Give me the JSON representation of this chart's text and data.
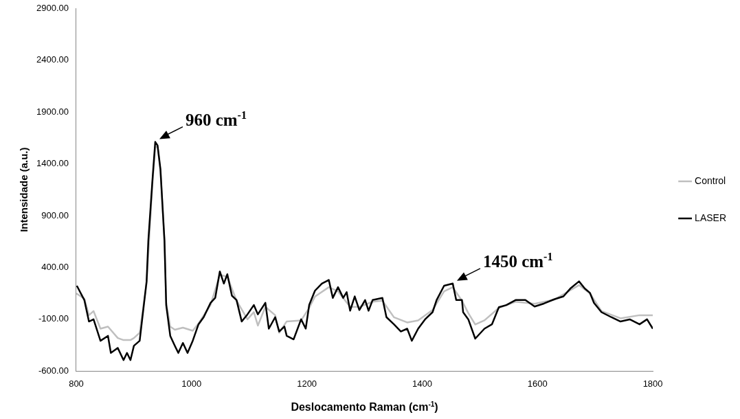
{
  "chart_data": {
    "type": "line",
    "xlabel": "Deslocamento Raman (cm$^{-1}$)",
    "ylabel": "Intensidade (a.u.)",
    "xlim": [
      800,
      1800
    ],
    "xticks": [
      800,
      1000,
      1200,
      1400,
      1600,
      1800
    ],
    "ylim": [
      -600,
      2900
    ],
    "yticks": [
      {
        "value": -600,
        "label": "-600.00"
      },
      {
        "value": -100,
        "label": "-100.00"
      },
      {
        "value": 400,
        "label": "400.00"
      },
      {
        "value": 900,
        "label": "900.00"
      },
      {
        "value": 1400,
        "label": "1400.00"
      },
      {
        "value": 1900,
        "label": "1900.00"
      },
      {
        "value": 2400,
        "label": "2400.00"
      },
      {
        "value": 2900,
        "label": "2900.00"
      }
    ],
    "grid": false,
    "legend": "right",
    "marker": "none",
    "line_style": "solid",
    "annotations": [
      {
        "text": "960 cm$^{-1}$",
        "x": 937,
        "y": 1611
      },
      {
        "text": "1450 cm$^{-1}$",
        "x": 1453,
        "y": 245
      }
    ],
    "series": [
      {
        "name": "Control",
        "color": "#bfbfbf",
        "x": [
          800,
          814,
          822,
          830,
          842,
          855,
          872,
          882,
          894,
          900,
          910,
          922,
          932,
          937,
          941,
          946,
          953,
          956,
          963,
          971,
          985,
          1002,
          1012,
          1033,
          1049,
          1062,
          1078,
          1097,
          1108,
          1115,
          1128,
          1145,
          1152,
          1165,
          1190,
          1204,
          1214,
          1238,
          1254,
          1275,
          1291,
          1314,
          1331,
          1351,
          1374,
          1393,
          1418,
          1438,
          1453,
          1469,
          1480,
          1492,
          1508,
          1533,
          1562,
          1595,
          1629,
          1672,
          1691,
          1711,
          1744,
          1777,
          1800
        ],
        "values": [
          150,
          100,
          -60,
          -20,
          -190,
          -170,
          -280,
          -300,
          -300,
          -280,
          -230,
          250,
          1200,
          1560,
          1570,
          1330,
          650,
          60,
          -170,
          -200,
          -180,
          -210,
          -140,
          40,
          330,
          310,
          80,
          -100,
          -30,
          -160,
          20,
          -60,
          -230,
          -120,
          -110,
          10,
          120,
          210,
          170,
          20,
          20,
          70,
          80,
          -80,
          -130,
          -110,
          -10,
          170,
          210,
          80,
          -40,
          -150,
          -110,
          10,
          70,
          50,
          90,
          230,
          150,
          -20,
          -90,
          -60,
          -60
        ]
      },
      {
        "name": "LASER",
        "color": "#000000",
        "x": [
          801,
          814,
          822,
          830,
          842,
          855,
          860,
          872,
          882,
          888,
          894,
          900,
          910,
          922,
          925,
          932,
          937,
          941,
          946,
          953,
          956,
          963,
          971,
          977,
          985,
          993,
          1002,
          1012,
          1021,
          1033,
          1041,
          1049,
          1056,
          1062,
          1070,
          1078,
          1087,
          1097,
          1108,
          1115,
          1128,
          1134,
          1145,
          1152,
          1161,
          1165,
          1177,
          1190,
          1198,
          1204,
          1214,
          1226,
          1238,
          1245,
          1254,
          1263,
          1269,
          1275,
          1283,
          1291,
          1301,
          1307,
          1314,
          1331,
          1338,
          1351,
          1363,
          1374,
          1382,
          1393,
          1405,
          1418,
          1425,
          1438,
          1453,
          1459,
          1469,
          1471,
          1480,
          1492,
          1508,
          1521,
          1533,
          1546,
          1562,
          1579,
          1595,
          1611,
          1629,
          1645,
          1657,
          1672,
          1682,
          1691,
          1698,
          1711,
          1728,
          1744,
          1760,
          1777,
          1790,
          1800
        ],
        "values": [
          224,
          86,
          -121,
          -100,
          -307,
          -259,
          -424,
          -376,
          -493,
          -424,
          -493,
          -355,
          -307,
          266,
          659,
          1232,
          1611,
          1577,
          1349,
          659,
          38,
          -259,
          -355,
          -424,
          -328,
          -424,
          -307,
          -148,
          -79,
          59,
          107,
          362,
          245,
          335,
          128,
          86,
          -121,
          -52,
          38,
          -52,
          59,
          -190,
          -79,
          -217,
          -169,
          -259,
          -293,
          -100,
          -190,
          38,
          176,
          245,
          280,
          107,
          210,
          107,
          162,
          -17,
          121,
          -10,
          86,
          -17,
          86,
          107,
          -79,
          -148,
          -217,
          -190,
          -307,
          -190,
          -100,
          -31,
          86,
          224,
          245,
          86,
          86,
          -31,
          -100,
          -286,
          -190,
          -148,
          17,
          38,
          86,
          86,
          24,
          52,
          93,
          121,
          197,
          266,
          197,
          155,
          59,
          -31,
          -79,
          -121,
          -100,
          -148,
          -100,
          -190
        ]
      }
    ]
  }
}
